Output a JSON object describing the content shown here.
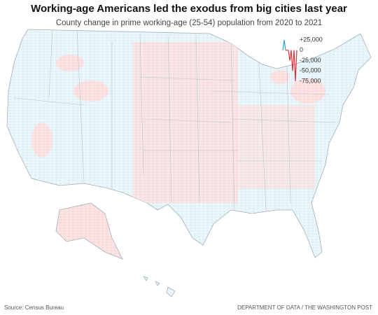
{
  "title": "Working-age Americans led the exodus from big cities last year",
  "subtitle": "County change in prime working-age (25-54) population from 2020 to 2021",
  "legend": {
    "ticks": [
      {
        "value": 25000,
        "label": "+25,000"
      },
      0,
      {
        "value": -25000,
        "label": "-25,000"
      },
      {
        "value": -50000,
        "label": "-50,000"
      },
      {
        "value": -75000,
        "label": "-75,000"
      }
    ],
    "increase_color": "#3d9cc4",
    "decrease_color": "#e0303a"
  },
  "source": "Source: Census Bureau",
  "credit": "DEPARTMENT OF DATA / THE WASHINGTON POST"
}
